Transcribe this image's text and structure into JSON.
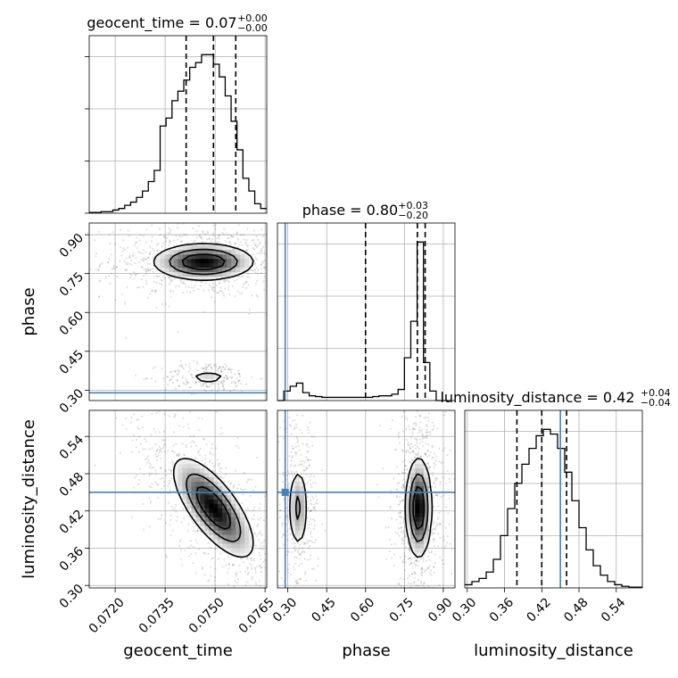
{
  "chart_data": {
    "type": "corner",
    "parameters": [
      "geocent_time",
      "phase",
      "luminosity_distance"
    ],
    "truth_color": "#4682b4",
    "truths": {
      "geocent_time": null,
      "phase": 0.29,
      "luminosity_distance": 0.45
    },
    "axes": {
      "geocent_time": {
        "range": [
          0.07122,
          0.07655
        ],
        "ticks": [
          0.072,
          0.0735,
          0.075,
          0.0765
        ],
        "tick_labels": [
          "0.0720",
          "0.0735",
          "0.0750",
          "0.0765"
        ]
      },
      "phase": {
        "range": [
          0.26,
          0.945
        ],
        "ticks": [
          0.3,
          0.45,
          0.6,
          0.75,
          0.9
        ],
        "tick_labels": [
          "0.30",
          "0.45",
          "0.60",
          "0.75",
          "0.90"
        ]
      },
      "luminosity_distance": {
        "range": [
          0.296,
          0.582
        ],
        "ticks": [
          0.3,
          0.36,
          0.42,
          0.48,
          0.54
        ],
        "tick_labels": [
          "0.30",
          "0.36",
          "0.42",
          "0.48",
          "0.54"
        ]
      }
    },
    "titles": [
      {
        "param": "geocent_time",
        "text": "geocent_time = 0.07",
        "plus": "+0.00",
        "minus": "−0.00"
      },
      {
        "param": "phase",
        "text": "phase = 0.80",
        "plus": "+0.03",
        "minus": "−0.20"
      },
      {
        "param": "luminosity_distance",
        "text": "luminosity_distance = 0.42",
        "plus": "+0.04",
        "minus": "−0.04"
      }
    ],
    "xlabels": {
      "geocent_time": "geocent_time",
      "phase": "phase",
      "luminosity_distance": "luminosity_distance"
    },
    "ylabels": {
      "phase": "phase",
      "luminosity_distance": "luminosity_distance"
    },
    "histograms": {
      "geocent_time": {
        "bin_edges": [
          0.07122,
          0.071397,
          0.071575,
          0.071753,
          0.07193,
          0.072108,
          0.072285,
          0.072463,
          0.07264,
          0.072818,
          0.072995,
          0.073173,
          0.07335,
          0.073528,
          0.073705,
          0.073883,
          0.07406,
          0.074238,
          0.074415,
          0.074593,
          0.07477,
          0.074948,
          0.075125,
          0.075303,
          0.07548,
          0.075658,
          0.075835,
          0.076013,
          0.07619,
          0.076368,
          0.076545
        ],
        "counts": [
          0.005,
          0.005,
          0.01,
          0.01,
          0.02,
          0.03,
          0.05,
          0.07,
          0.1,
          0.14,
          0.2,
          0.27,
          0.55,
          0.6,
          0.71,
          0.77,
          0.84,
          0.92,
          0.95,
          1.0,
          1.0,
          0.94,
          0.86,
          0.74,
          0.58,
          0.4,
          0.22,
          0.14,
          0.06,
          0.03
        ],
        "quantiles": [
          0.07413,
          0.07495,
          0.07562
        ]
      },
      "phase": {
        "bin_edges": [
          0.26,
          0.2845,
          0.309,
          0.3335,
          0.358,
          0.3825,
          0.407,
          0.4315,
          0.456,
          0.4805,
          0.505,
          0.5295,
          0.554,
          0.5785,
          0.603,
          0.6275,
          0.652,
          0.6765,
          0.701,
          0.7255,
          0.75,
          0.7745,
          0.799,
          0.8235,
          0.848,
          0.8725,
          0.897,
          0.9215
        ],
        "counts": [
          0.0,
          0.06,
          0.09,
          0.11,
          0.05,
          0.03,
          0.025,
          0.02,
          0.02,
          0.02,
          0.02,
          0.02,
          0.02,
          0.02,
          0.02,
          0.025,
          0.03,
          0.03,
          0.04,
          0.07,
          0.27,
          0.5,
          1.0,
          0.24,
          0.06,
          0.0,
          0.0
        ],
        "quantiles": [
          0.6,
          0.8,
          0.83
        ]
      },
      "luminosity_distance": {
        "bin_edges": [
          0.296,
          0.3075,
          0.319,
          0.3305,
          0.342,
          0.3535,
          0.365,
          0.3765,
          0.388,
          0.3995,
          0.411,
          0.4225,
          0.434,
          0.4455,
          0.457,
          0.4685,
          0.48,
          0.4915,
          0.503,
          0.5145,
          0.526,
          0.5375,
          0.549,
          0.5605,
          0.572,
          0.5835
        ],
        "counts": [
          0.02,
          0.04,
          0.06,
          0.1,
          0.18,
          0.33,
          0.5,
          0.66,
          0.78,
          0.88,
          0.96,
          1.0,
          0.97,
          0.88,
          0.73,
          0.55,
          0.38,
          0.24,
          0.14,
          0.08,
          0.04,
          0.02,
          0.01,
          0.005,
          0.005
        ],
        "quantiles": [
          0.38,
          0.42,
          0.46
        ]
      }
    },
    "densities": [
      {
        "x": "geocent_time",
        "y": "phase",
        "modes": [
          {
            "cx": 0.07465,
            "cy": 0.795,
            "sx": 0.00075,
            "sy": 0.035,
            "corr": 0.0,
            "weight": 1.0
          },
          {
            "cx": 0.0748,
            "cy": 0.35,
            "sx": 0.00035,
            "sy": 0.015,
            "corr": 0.0,
            "weight": 0.25
          }
        ]
      },
      {
        "x": "geocent_time",
        "y": "luminosity_distance",
        "modes": [
          {
            "cx": 0.07495,
            "cy": 0.425,
            "sx": 0.0006,
            "sy": 0.04,
            "corr": -0.72,
            "weight": 1.0
          }
        ]
      },
      {
        "x": "phase",
        "y": "luminosity_distance",
        "modes": [
          {
            "cx": 0.805,
            "cy": 0.425,
            "sx": 0.025,
            "sy": 0.04,
            "corr": 0.0,
            "weight": 1.0
          },
          {
            "cx": 0.34,
            "cy": 0.425,
            "sx": 0.02,
            "sy": 0.035,
            "corr": 0.0,
            "weight": 0.45
          }
        ]
      }
    ]
  }
}
